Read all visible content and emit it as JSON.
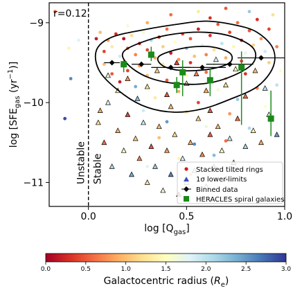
{
  "chart_data": {
    "type": "scatter",
    "xlabel_main": "log [Q",
    "xlabel_sub": "gas",
    "xlabel_end": "]",
    "ylabel_main": "log [SFE",
    "ylabel_sub": "gas",
    "ylabel_mid": " (yr",
    "ylabel_sup": "−1",
    "ylabel_end": ")]",
    "xlim": [
      -0.2,
      1.0
    ],
    "ylim": [
      -11.3,
      -8.75
    ],
    "x_ticks": [
      {
        "value": 0.0,
        "label": "0.0"
      },
      {
        "value": 0.5,
        "label": "0.5"
      },
      {
        "value": 1.0,
        "label": "1.0"
      }
    ],
    "y_ticks": [
      {
        "value": -9,
        "label": "−9"
      },
      {
        "value": -10,
        "label": "−10"
      },
      {
        "value": -11,
        "label": "−11"
      }
    ],
    "correlation_label": "r=0.12",
    "threshold": {
      "x": 0.0,
      "left_label": "Unstable",
      "right_label": "Stable"
    },
    "legend": {
      "placement": "lower-right",
      "entries": [
        {
          "label": "Stacked tilted rings",
          "marker": "dot",
          "color": "#d7191c"
        },
        {
          "label": "1σ lower-limits",
          "marker": "triangle",
          "color": "#3b4cc0"
        },
        {
          "label": "Binned data",
          "marker": "diamond",
          "color": "#000000"
        },
        {
          "label": "HERACLES spiral galaxies",
          "marker": "square",
          "color": "#1a8a1a"
        }
      ]
    },
    "binned_data": [
      {
        "x": 0.12,
        "y": -9.5,
        "xerr": 0.04
      },
      {
        "x": 0.27,
        "y": -9.52,
        "xerr": 0.05
      },
      {
        "x": 0.42,
        "y": -9.56,
        "xerr": 0.1
      },
      {
        "x": 0.58,
        "y": -9.56,
        "xerr": 0.12
      },
      {
        "x": 0.72,
        "y": -9.52,
        "xerr": 0.12
      },
      {
        "x": 0.88,
        "y": -9.44,
        "xerr": 0.12
      }
    ],
    "heracles": [
      {
        "x": 0.18,
        "y": -9.52,
        "ylo": 0.1,
        "yhi": 0.05
      },
      {
        "x": 0.32,
        "y": -9.4,
        "ylo": 0.08,
        "yhi": 0.1
      },
      {
        "x": 0.45,
        "y": -9.78,
        "ylo": 0.1,
        "yhi": 0.1
      },
      {
        "x": 0.48,
        "y": -9.62,
        "ylo": 0.3,
        "yhi": 0.15
      },
      {
        "x": 0.62,
        "y": -9.72,
        "ylo": 0.2,
        "yhi": 0.15
      },
      {
        "x": 0.78,
        "y": -9.56,
        "ylo": 0.72,
        "yhi": 0.2
      },
      {
        "x": 0.93,
        "y": -10.2,
        "ylo": 0.22,
        "yhi": 0.35
      }
    ],
    "contours": [
      {
        "level": "outer",
        "points": [
          [
            0.04,
            -9.35
          ],
          [
            0.12,
            -9.18
          ],
          [
            0.3,
            -9.08
          ],
          [
            0.45,
            -9.02
          ],
          [
            0.6,
            -8.98
          ],
          [
            0.75,
            -9.03
          ],
          [
            0.86,
            -9.12
          ],
          [
            0.94,
            -9.32
          ],
          [
            0.94,
            -9.56
          ],
          [
            0.86,
            -9.8
          ],
          [
            0.72,
            -9.96
          ],
          [
            0.58,
            -10.08
          ],
          [
            0.44,
            -10.12
          ],
          [
            0.3,
            -10.06
          ],
          [
            0.18,
            -9.9
          ],
          [
            0.06,
            -9.62
          ]
        ]
      },
      {
        "level": "middle",
        "points": [
          [
            0.18,
            -9.36
          ],
          [
            0.3,
            -9.22
          ],
          [
            0.44,
            -9.14
          ],
          [
            0.6,
            -9.12
          ],
          [
            0.74,
            -9.18
          ],
          [
            0.84,
            -9.32
          ],
          [
            0.84,
            -9.5
          ],
          [
            0.74,
            -9.66
          ],
          [
            0.6,
            -9.76
          ],
          [
            0.44,
            -9.76
          ],
          [
            0.3,
            -9.68
          ],
          [
            0.2,
            -9.52
          ]
        ]
      },
      {
        "level": "inner",
        "points": [
          [
            0.36,
            -9.42
          ],
          [
            0.48,
            -9.32
          ],
          [
            0.62,
            -9.3
          ],
          [
            0.72,
            -9.38
          ],
          [
            0.72,
            -9.5
          ],
          [
            0.62,
            -9.58
          ],
          [
            0.48,
            -9.6
          ],
          [
            0.38,
            -9.54
          ]
        ]
      }
    ],
    "colorbar": {
      "label_main": "Galactocentric radius (",
      "label_sym": "R",
      "label_sub": "e",
      "label_end": ")",
      "range": [
        0.0,
        3.0
      ],
      "ticks": [
        {
          "value": 0.0,
          "label": "0.0"
        },
        {
          "value": 0.5,
          "label": "0.5"
        },
        {
          "value": 1.0,
          "label": "1.0"
        },
        {
          "value": 1.5,
          "label": "1.5"
        },
        {
          "value": 2.0,
          "label": "2.0"
        },
        {
          "value": 2.5,
          "label": "2.5"
        },
        {
          "value": 3.0,
          "label": "3.0"
        }
      ],
      "colormap": [
        "#a50026",
        "#d73027",
        "#f46d43",
        "#fdae61",
        "#fee090",
        "#ffffbf",
        "#e0f3f8",
        "#abd9e9",
        "#74add1",
        "#4575b4",
        "#313695"
      ]
    },
    "tilted_rings_sample": [
      [
        -0.17,
        -8.86,
        0.6
      ],
      [
        -0.1,
        -9.32,
        1.4
      ],
      [
        -0.09,
        -9.7,
        2.6
      ],
      [
        -0.12,
        -10.2,
        2.9
      ],
      [
        -0.05,
        -9.22,
        1.8
      ],
      [
        0.04,
        -9.2,
        0.2
      ],
      [
        0.06,
        -9.12,
        1.0
      ],
      [
        0.08,
        -9.36,
        0.4
      ],
      [
        0.1,
        -9.22,
        0.8
      ],
      [
        0.12,
        -9.3,
        1.3
      ],
      [
        0.14,
        -9.14,
        0.3
      ],
      [
        0.16,
        -9.42,
        1.9
      ],
      [
        0.18,
        -9.2,
        0.1
      ],
      [
        0.2,
        -9.32,
        0.5
      ],
      [
        0.22,
        -9.16,
        1.2
      ],
      [
        0.24,
        -9.4,
        0.7
      ],
      [
        0.26,
        -9.26,
        0.2
      ],
      [
        0.28,
        -9.12,
        1.6
      ],
      [
        0.3,
        -9.34,
        0.4
      ],
      [
        0.32,
        -9.22,
        2.1
      ],
      [
        0.34,
        -9.44,
        0.9
      ],
      [
        0.36,
        -9.18,
        0.3
      ],
      [
        0.38,
        -9.3,
        1.1
      ],
      [
        0.4,
        -9.08,
        0.6
      ],
      [
        0.42,
        -9.38,
        0.2
      ],
      [
        0.44,
        -9.24,
        1.5
      ],
      [
        0.46,
        -9.46,
        0.8
      ],
      [
        0.48,
        -9.14,
        0.4
      ],
      [
        0.5,
        -9.32,
        2.3
      ],
      [
        0.52,
        -9.2,
        0.5
      ],
      [
        0.54,
        -9.42,
        1.0
      ],
      [
        0.56,
        -9.08,
        0.2
      ],
      [
        0.58,
        -9.28,
        1.8
      ],
      [
        0.6,
        -9.4,
        0.7
      ],
      [
        0.62,
        -9.16,
        0.3
      ],
      [
        0.64,
        -9.34,
        1.2
      ],
      [
        0.66,
        -9.02,
        0.5
      ],
      [
        0.68,
        -9.26,
        2.0
      ],
      [
        0.7,
        -9.44,
        0.9
      ],
      [
        0.72,
        -9.12,
        0.4
      ],
      [
        0.74,
        -9.3,
        1.4
      ],
      [
        0.76,
        -9.0,
        0.6
      ],
      [
        0.78,
        -9.22,
        0.2
      ],
      [
        0.8,
        -9.38,
        1.7
      ],
      [
        0.82,
        -9.1,
        0.5
      ],
      [
        0.84,
        -9.28,
        1.1
      ],
      [
        0.86,
        -8.96,
        0.3
      ],
      [
        0.88,
        -9.2,
        0.8
      ],
      [
        0.9,
        -9.36,
        1.9
      ],
      [
        0.92,
        -9.08,
        0.4
      ],
      [
        0.94,
        -8.9,
        1.2
      ],
      [
        0.96,
        -9.3,
        0.7
      ],
      [
        0.98,
        -9.6,
        1.5
      ],
      [
        0.7,
        -8.82,
        0.5
      ],
      [
        0.56,
        -8.86,
        1.3
      ],
      [
        0.42,
        -8.9,
        0.6
      ],
      [
        0.82,
        -8.86,
        2.2
      ],
      [
        0.3,
        -9.0,
        0.9
      ],
      [
        0.2,
        -9.04,
        1.6
      ],
      [
        0.62,
        -8.94,
        0.3
      ],
      [
        0.2,
        -9.6,
        0.4
      ],
      [
        0.3,
        -9.66,
        1.0
      ],
      [
        0.4,
        -9.72,
        0.5
      ],
      [
        0.5,
        -9.66,
        1.4
      ],
      [
        0.6,
        -9.62,
        0.6
      ],
      [
        0.7,
        -9.7,
        1.1
      ],
      [
        0.8,
        -9.64,
        0.3
      ],
      [
        0.9,
        -9.7,
        1.8
      ],
      [
        0.24,
        -9.8,
        2.4
      ],
      [
        0.46,
        -9.86,
        0.9
      ],
      [
        0.66,
        -9.84,
        1.6
      ],
      [
        0.86,
        -9.82,
        0.7
      ],
      [
        0.34,
        -9.94,
        1.3
      ],
      [
        0.56,
        -10.0,
        0.4
      ],
      [
        0.76,
        -9.96,
        2.2
      ],
      [
        0.28,
        -10.1,
        1.9
      ],
      [
        0.5,
        -10.12,
        1.2
      ],
      [
        0.72,
        -10.14,
        0.8
      ],
      [
        0.9,
        -10.05,
        1.5
      ],
      [
        0.4,
        -10.24,
        2.5
      ],
      [
        0.6,
        -10.3,
        1.7
      ],
      [
        0.82,
        -10.32,
        2.1
      ],
      [
        0.36,
        -10.44,
        1.0
      ],
      [
        0.54,
        -10.52,
        2.6
      ],
      [
        0.7,
        -10.48,
        0.6
      ],
      [
        0.46,
        -10.7,
        1.4
      ],
      [
        0.64,
        -10.66,
        2.3
      ],
      [
        0.3,
        -10.8,
        1.8
      ],
      [
        0.52,
        -10.9,
        0.9
      ],
      [
        0.74,
        -10.86,
        2.7
      ],
      [
        0.12,
        -9.64,
        0.5
      ],
      [
        0.08,
        -9.52,
        1.0
      ],
      [
        0.16,
        -9.74,
        0.2
      ],
      [
        0.26,
        -9.54,
        0.8
      ],
      [
        0.38,
        -9.52,
        1.3
      ],
      [
        0.52,
        -9.5,
        0.3
      ],
      [
        0.64,
        -9.52,
        1.6
      ],
      [
        0.78,
        -9.48,
        0.4
      ],
      [
        0.92,
        -9.5,
        1.1
      ],
      [
        0.96,
        -9.78,
        2.0
      ]
    ],
    "lower_limits_sample": [
      [
        0.05,
        -10.25,
        1.2
      ],
      [
        0.08,
        -10.5,
        0.6
      ],
      [
        0.1,
        -10.0,
        1.8
      ],
      [
        0.12,
        -10.8,
        2.1
      ],
      [
        0.15,
        -10.35,
        0.9
      ],
      [
        0.18,
        -10.6,
        1.5
      ],
      [
        0.2,
        -10.15,
        0.4
      ],
      [
        0.22,
        -10.9,
        2.4
      ],
      [
        0.24,
        -10.45,
        1.1
      ],
      [
        0.26,
        -10.7,
        0.7
      ],
      [
        0.28,
        -10.25,
        1.9
      ],
      [
        0.3,
        -11.0,
        1.3
      ],
      [
        0.32,
        -10.55,
        0.5
      ],
      [
        0.34,
        -10.8,
        2.2
      ],
      [
        0.36,
        -10.3,
        1.0
      ],
      [
        0.38,
        -11.1,
        1.6
      ],
      [
        0.4,
        -10.6,
        0.8
      ],
      [
        0.42,
        -10.9,
        2.6
      ],
      [
        0.44,
        -10.4,
        1.2
      ],
      [
        0.46,
        -11.15,
        0.6
      ],
      [
        0.48,
        -10.7,
        1.8
      ],
      [
        0.5,
        -11.0,
        1.4
      ],
      [
        0.52,
        -10.5,
        0.9
      ],
      [
        0.54,
        -10.85,
        2.0
      ],
      [
        0.56,
        -10.2,
        1.1
      ],
      [
        0.58,
        -10.65,
        0.7
      ],
      [
        0.6,
        -11.05,
        1.7
      ],
      [
        0.62,
        -10.4,
        0.5
      ],
      [
        0.64,
        -10.8,
        2.3
      ],
      [
        0.66,
        -10.3,
        1.0
      ],
      [
        0.68,
        -10.6,
        1.5
      ],
      [
        0.7,
        -10.95,
        0.8
      ],
      [
        0.72,
        -10.45,
        1.9
      ],
      [
        0.74,
        -10.75,
        1.2
      ],
      [
        0.76,
        -10.2,
        0.6
      ],
      [
        0.8,
        -10.55,
        2.1
      ],
      [
        0.84,
        -10.35,
        1.4
      ],
      [
        0.88,
        -10.5,
        0.9
      ],
      [
        0.92,
        -10.15,
        1.6
      ],
      [
        0.96,
        -10.4,
        2.5
      ],
      [
        0.2,
        -9.7,
        0.8
      ],
      [
        0.3,
        -9.8,
        1.2
      ],
      [
        0.4,
        -9.9,
        0.5
      ],
      [
        0.5,
        -9.76,
        1.6
      ],
      [
        0.6,
        -9.85,
        0.9
      ],
      [
        0.7,
        -9.78,
        1.3
      ],
      [
        0.8,
        -9.92,
        0.6
      ],
      [
        0.9,
        -9.82,
        2.0
      ],
      [
        0.35,
        -9.6,
        1.1
      ],
      [
        0.55,
        -9.64,
        0.7
      ],
      [
        0.75,
        -9.58,
        1.5
      ],
      [
        0.45,
        -9.5,
        0.4
      ],
      [
        0.65,
        -9.46,
        1.8
      ],
      [
        0.85,
        -9.6,
        1.0
      ],
      [
        0.25,
        -9.95,
        2.3
      ],
      [
        0.15,
        -9.85,
        1.4
      ],
      [
        0.06,
        -10.1,
        0.9
      ],
      [
        0.1,
        -9.66,
        1.7
      ],
      [
        0.42,
        -10.05,
        1.0
      ],
      [
        0.62,
        -10.1,
        0.5
      ]
    ]
  }
}
